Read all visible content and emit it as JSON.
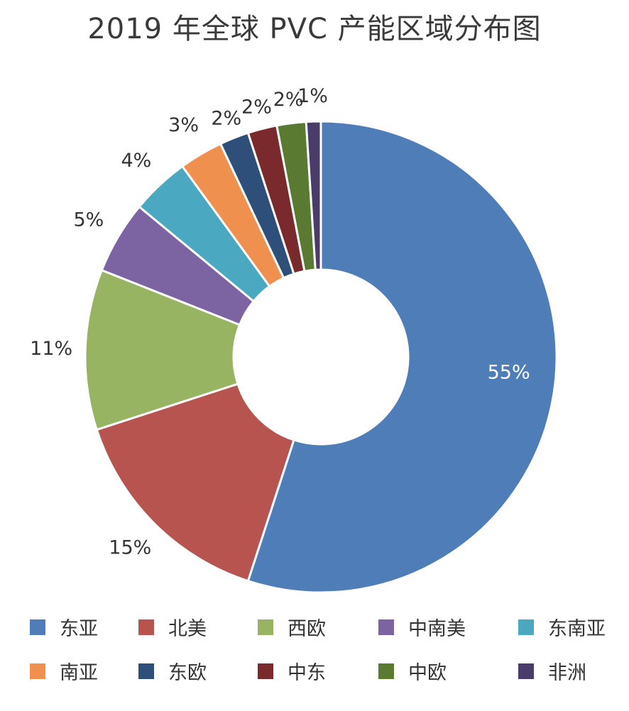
{
  "chart_data": {
    "type": "pie",
    "title": "2019 年全球 PVC 产能区域分布图",
    "unit": "%",
    "categories": [
      "东亚",
      "北美",
      "西欧",
      "中南美",
      "东南亚",
      "南亚",
      "东欧",
      "中东",
      "中欧",
      "非洲"
    ],
    "values": [
      55,
      15,
      11,
      5,
      4,
      3,
      2,
      2,
      2,
      1
    ],
    "labels": [
      "55%",
      "15%",
      "11%",
      "5%",
      "4%",
      "3%",
      "2%",
      "2%",
      "2%",
      "1%"
    ],
    "colors": [
      "#4f7db8",
      "#b85450",
      "#96b462",
      "#7c64a3",
      "#4aa8c0",
      "#f0904f",
      "#2e4f79",
      "#7a2a2d",
      "#5a7a32",
      "#4a3c6a"
    ],
    "legend_position": "bottom",
    "donut": true
  }
}
